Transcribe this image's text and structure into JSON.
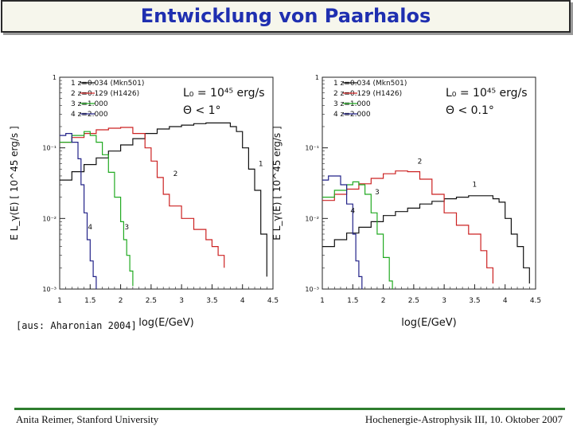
{
  "slide": {
    "title": "Entwicklung von Paarhalos",
    "source": "[aus: Aharonian 2004]",
    "footer_left": "Anita Reimer, Stanford University",
    "footer_right": "Hochenergie-Astrophysik III, 10. Oktober 2007"
  },
  "chart_data": [
    {
      "type": "line",
      "xlabel": "log(E/GeV)",
      "ylabel": "E L_γ(E) [ 10^45 erg/s ]",
      "xlim": [
        1,
        4.5
      ],
      "ylim": [
        0.001,
        1
      ],
      "yscale": "log",
      "xticks": [
        "1",
        "1.5",
        "2",
        "2.5",
        "3",
        "3.5",
        "4",
        "4.5"
      ],
      "yticks": [
        "10⁻³",
        "10⁻²",
        "10⁻¹",
        "1"
      ],
      "annotations": [
        "L₀ = 10⁴⁵ erg/s",
        "Θ < 1°"
      ],
      "legend": {
        "placement": "top-left",
        "entries": [
          "1   z=0.034 (Mkn501)",
          "2   z=0.129 (H1426)",
          "3   z=1.000",
          "4   z=2.000"
        ]
      },
      "curve_labels": [
        {
          "text": "1",
          "x": 4.3,
          "y": 0.055
        },
        {
          "text": "2",
          "x": 2.9,
          "y": 0.04
        },
        {
          "text": "3",
          "x": 2.1,
          "y": 0.007
        },
        {
          "text": "4",
          "x": 1.5,
          "y": 0.007
        }
      ],
      "series": [
        {
          "name": "1",
          "color": "#111111",
          "x": [
            1.0,
            1.2,
            1.4,
            1.6,
            1.8,
            2.0,
            2.2,
            2.4,
            2.6,
            2.8,
            3.0,
            3.2,
            3.4,
            3.6,
            3.8,
            3.9,
            4.0,
            4.1,
            4.2,
            4.3,
            4.4
          ],
          "y": [
            0.035,
            0.046,
            0.058,
            0.072,
            0.09,
            0.11,
            0.135,
            0.16,
            0.185,
            0.2,
            0.21,
            0.22,
            0.225,
            0.225,
            0.2,
            0.17,
            0.1,
            0.05,
            0.025,
            0.006,
            0.0015
          ]
        },
        {
          "name": "2",
          "color": "#cc2222",
          "x": [
            1.0,
            1.2,
            1.4,
            1.6,
            1.8,
            2.0,
            2.2,
            2.4,
            2.5,
            2.6,
            2.7,
            2.8,
            3.0,
            3.2,
            3.4,
            3.5,
            3.6,
            3.7
          ],
          "y": [
            0.12,
            0.14,
            0.16,
            0.18,
            0.19,
            0.195,
            0.16,
            0.1,
            0.065,
            0.038,
            0.022,
            0.015,
            0.01,
            0.007,
            0.005,
            0.004,
            0.003,
            0.002
          ]
        },
        {
          "name": "3",
          "color": "#22aa22",
          "x": [
            1.0,
            1.2,
            1.4,
            1.5,
            1.6,
            1.7,
            1.8,
            1.9,
            2.0,
            2.05,
            2.1,
            2.15,
            2.2
          ],
          "y": [
            0.12,
            0.15,
            0.17,
            0.15,
            0.12,
            0.08,
            0.045,
            0.02,
            0.009,
            0.005,
            0.003,
            0.0018,
            0.0011
          ]
        },
        {
          "name": "4",
          "color": "#222288",
          "x": [
            1.0,
            1.1,
            1.2,
            1.3,
            1.35,
            1.4,
            1.45,
            1.5,
            1.55,
            1.6
          ],
          "y": [
            0.15,
            0.16,
            0.12,
            0.07,
            0.03,
            0.012,
            0.005,
            0.0025,
            0.0015,
            0.001
          ]
        }
      ]
    },
    {
      "type": "line",
      "xlabel": "log(E/GeV)",
      "ylabel": "E L_γ(E) [ 10^45 erg/s ]",
      "xlim": [
        1,
        4.5
      ],
      "ylim": [
        0.001,
        1
      ],
      "yscale": "log",
      "xticks": [
        "1",
        "1.5",
        "2",
        "2.5",
        "3",
        "3.5",
        "4",
        "4.5"
      ],
      "yticks": [
        "10⁻³",
        "10⁻²",
        "10⁻¹",
        "1"
      ],
      "annotations": [
        "L₀ = 10⁴⁵ erg/s",
        "Θ < 0.1°"
      ],
      "legend": {
        "placement": "top-left",
        "entries": [
          "1   z=0.034 (Mkn501)",
          "2   z=0.129 (H1426)",
          "3   z=1.000",
          "4   z=2.000"
        ]
      },
      "curve_labels": [
        {
          "text": "1",
          "x": 3.5,
          "y": 0.028
        },
        {
          "text": "2",
          "x": 2.6,
          "y": 0.06
        },
        {
          "text": "3",
          "x": 1.9,
          "y": 0.022
        },
        {
          "text": "4",
          "x": 1.5,
          "y": 0.012
        }
      ],
      "series": [
        {
          "name": "1",
          "color": "#111111",
          "x": [
            1.0,
            1.2,
            1.4,
            1.6,
            1.8,
            2.0,
            2.2,
            2.4,
            2.6,
            2.8,
            3.0,
            3.2,
            3.4,
            3.6,
            3.8,
            3.9,
            4.0,
            4.1,
            4.2,
            4.3,
            4.4
          ],
          "y": [
            0.004,
            0.005,
            0.0062,
            0.0075,
            0.009,
            0.011,
            0.0125,
            0.014,
            0.016,
            0.0175,
            0.019,
            0.02,
            0.021,
            0.021,
            0.019,
            0.017,
            0.01,
            0.006,
            0.004,
            0.002,
            0.0012
          ]
        },
        {
          "name": "2",
          "color": "#cc2222",
          "x": [
            1.0,
            1.2,
            1.4,
            1.6,
            1.8,
            2.0,
            2.2,
            2.4,
            2.6,
            2.8,
            3.0,
            3.2,
            3.4,
            3.6,
            3.7,
            3.8
          ],
          "y": [
            0.018,
            0.022,
            0.026,
            0.031,
            0.037,
            0.043,
            0.047,
            0.046,
            0.036,
            0.022,
            0.012,
            0.008,
            0.006,
            0.0035,
            0.002,
            0.0012
          ]
        },
        {
          "name": "3",
          "color": "#22aa22",
          "x": [
            1.0,
            1.2,
            1.4,
            1.5,
            1.6,
            1.7,
            1.8,
            1.9,
            2.0,
            2.1,
            2.15
          ],
          "y": [
            0.02,
            0.025,
            0.03,
            0.033,
            0.03,
            0.022,
            0.012,
            0.006,
            0.0028,
            0.0013,
            0.001
          ]
        },
        {
          "name": "4",
          "color": "#222288",
          "x": [
            1.0,
            1.1,
            1.2,
            1.3,
            1.4,
            1.5,
            1.55,
            1.6,
            1.65
          ],
          "y": [
            0.035,
            0.04,
            0.04,
            0.03,
            0.016,
            0.006,
            0.0025,
            0.0015,
            0.001
          ]
        }
      ]
    }
  ]
}
